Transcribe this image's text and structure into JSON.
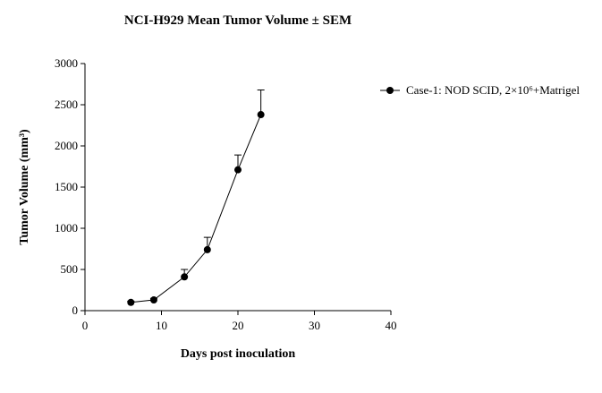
{
  "chart_data": {
    "type": "line",
    "title": "NCI-H929 Mean Tumor Volume ± SEM",
    "x_label": "Days post inoculation",
    "y_label": "Tumor Volume (mm³)",
    "series": [
      {
        "name": "Case-1: NOD SCID, 2×10⁶+Matrigel",
        "color": "#000000",
        "x": [
          6,
          9,
          13,
          16,
          20,
          23
        ],
        "values": [
          100,
          130,
          410,
          740,
          1710,
          2380
        ],
        "errors": [
          15,
          20,
          90,
          150,
          180,
          300
        ]
      }
    ],
    "xlim": [
      0,
      40
    ],
    "xticks": [
      0,
      10,
      20,
      30,
      40
    ],
    "ylim": [
      0,
      3000
    ],
    "yticks": [
      0,
      500,
      1000,
      1500,
      2000,
      2500,
      3000
    ],
    "grid": false,
    "legend": "upper right"
  }
}
